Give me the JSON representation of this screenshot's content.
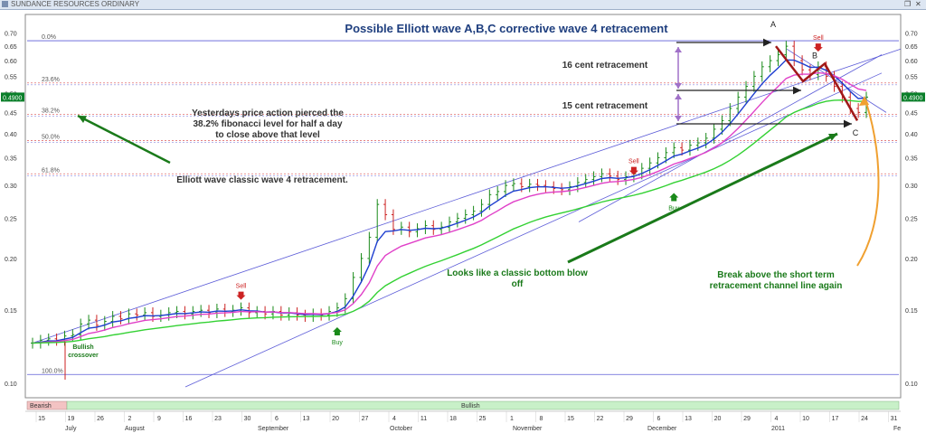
{
  "window": {
    "title": "SUNDANCE RESOURCES ORDINARY",
    "buttons": [
      "restore-icon",
      "close-icon"
    ]
  },
  "colors": {
    "price_up": "#1a8a1a",
    "price_down": "#cc2222",
    "ma_short": "#1f3fd0",
    "ma_mid": "#e040c8",
    "ma_long": "#33d133",
    "channel": "#5d5dd8",
    "fib_blue": "#8a8ae0",
    "fib_red": "#e07070",
    "wave": "#a01818",
    "annot_green": "#1a7a1a",
    "title_blue": "#1f3f7f",
    "bullish_band": "#c8f0c8",
    "bearish_band": "#f3c3c3",
    "last_price_bg": "#0a7f2a",
    "breakout_arrow": "#f0a030"
  },
  "chart_data": {
    "type": "candlestick",
    "title": "Possible Elliott wave A,B,C corrective wave 4 retracement",
    "y_axis": {
      "scale": "log",
      "range": [
        0.098,
        0.73
      ],
      "ticks": [
        "0.70",
        "0.65",
        "0.60",
        "0.55",
        "0.50",
        "0.45",
        "0.40",
        "0.35",
        "0.30",
        "0.25",
        "0.20",
        "0.15",
        "0.10"
      ],
      "last_price_label": "0.4900"
    },
    "x_axis": {
      "day_labels": [
        "15",
        "19",
        "26",
        "2",
        "9",
        "16",
        "23",
        "30",
        "6",
        "13",
        "20",
        "27",
        "4",
        "11",
        "18",
        "25",
        "1",
        "8",
        "15",
        "22",
        "29",
        "6",
        "13",
        "20",
        "29",
        "4",
        "10",
        "17",
        "24",
        "31"
      ],
      "month_labels": [
        "July",
        "August",
        "September",
        "October",
        "November",
        "December",
        "2011",
        "Fe"
      ]
    },
    "fibonacci_levels": [
      {
        "label": "0.0%",
        "value": 0.67
      },
      {
        "label": "23.6%",
        "value": 0.53
      },
      {
        "label": "38.2%",
        "value": 0.445
      },
      {
        "label": "50.0%",
        "value": 0.385
      },
      {
        "label": "61.8%",
        "value": 0.32
      },
      {
        "label": "100.0%",
        "value": 0.105
      }
    ],
    "close_series": [
      0.125,
      0.127,
      0.128,
      0.127,
      0.13,
      0.131,
      0.139,
      0.142,
      0.138,
      0.141,
      0.145,
      0.143,
      0.147,
      0.146,
      0.148,
      0.145,
      0.146,
      0.148,
      0.149,
      0.147,
      0.149,
      0.15,
      0.148,
      0.151,
      0.149,
      0.15,
      0.152,
      0.148,
      0.149,
      0.147,
      0.149,
      0.146,
      0.148,
      0.146,
      0.145,
      0.147,
      0.146,
      0.149,
      0.152,
      0.16,
      0.18,
      0.2,
      0.225,
      0.27,
      0.255,
      0.235,
      0.238,
      0.232,
      0.236,
      0.24,
      0.235,
      0.238,
      0.245,
      0.25,
      0.255,
      0.26,
      0.27,
      0.285,
      0.29,
      0.3,
      0.303,
      0.298,
      0.302,
      0.3,
      0.298,
      0.295,
      0.293,
      0.298,
      0.305,
      0.31,
      0.315,
      0.32,
      0.316,
      0.31,
      0.315,
      0.32,
      0.33,
      0.34,
      0.35,
      0.36,
      0.37,
      0.365,
      0.375,
      0.38,
      0.39,
      0.41,
      0.43,
      0.46,
      0.49,
      0.52,
      0.55,
      0.58,
      0.6,
      0.62,
      0.65,
      0.6,
      0.57,
      0.555,
      0.58,
      0.55,
      0.52,
      0.49,
      0.46,
      0.45,
      0.49
    ],
    "moving_averages": [
      {
        "name": "short",
        "color_key": "ma_short"
      },
      {
        "name": "mid",
        "color_key": "ma_mid"
      },
      {
        "name": "long",
        "color_key": "ma_long"
      }
    ],
    "signals": [
      {
        "label": "Sell",
        "type": "sell",
        "x_day": "23",
        "price": 0.155
      },
      {
        "label": "Buy",
        "type": "buy",
        "x_day": "6",
        "price": 0.14
      },
      {
        "label": "Sell",
        "type": "sell",
        "x_day": "1",
        "price": 0.31
      },
      {
        "label": "Buy",
        "type": "buy",
        "x_day": "8",
        "price": 0.295
      },
      {
        "label": "Sell",
        "type": "sell",
        "x_day": "17",
        "price": 0.615
      }
    ],
    "wave_points": [
      {
        "label": "A",
        "price": 0.67
      },
      {
        "label": "B",
        "price": 0.59
      },
      {
        "label": "C",
        "price": 0.43
      }
    ]
  },
  "annotations": {
    "fib_pierce": "Yesterdays price action pierced the 38.2% fibonacci level for half a day to close above that level at close.",
    "elliott_classic": "Elliott wave classic wave 4 retracement.",
    "retrace_16": "16 cent retracement",
    "retrace_15": "15 cent retracement",
    "blowoff": "Looks like a classic bottom  blow off pattern",
    "breakout": "Break above the short term retracement channel line again",
    "bullish_crossover": "Bullish crossover"
  },
  "bands": {
    "bearish": "Bearish",
    "bullish": "Bullish"
  }
}
